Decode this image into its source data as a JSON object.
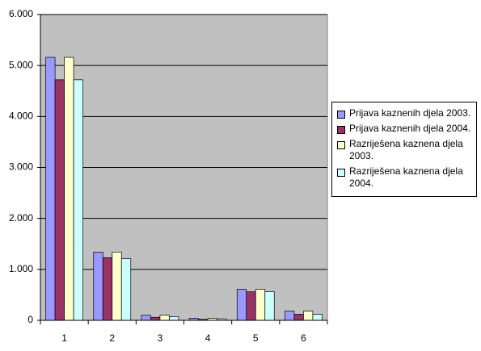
{
  "chart_data": {
    "type": "bar",
    "categories": [
      "1",
      "2",
      "3",
      "4",
      "5",
      "6"
    ],
    "series": [
      {
        "name": "Prijava kaznenih djela 2003.",
        "color": "#9999ff",
        "values": [
          5160,
          1340,
          100,
          40,
          610,
          180
        ]
      },
      {
        "name": "Prijava kaznenih djela 2004.",
        "color": "#993366",
        "values": [
          4720,
          1230,
          60,
          20,
          560,
          120
        ]
      },
      {
        "name": "Razriješena kaznena djela 2003.",
        "color": "#ffffcc",
        "values": [
          5160,
          1340,
          100,
          40,
          610,
          180
        ]
      },
      {
        "name": "Razriješena kaznena djela 2004.",
        "color": "#ccffff",
        "values": [
          4720,
          1210,
          70,
          30,
          560,
          120
        ]
      }
    ],
    "ylim": [
      0,
      6000
    ],
    "yticks": [
      {
        "value": 0,
        "label": "0"
      },
      {
        "value": 1000,
        "label": "1.000"
      },
      {
        "value": 2000,
        "label": "2.000"
      },
      {
        "value": 3000,
        "label": "3.000"
      },
      {
        "value": 4000,
        "label": "4.000"
      },
      {
        "value": 5000,
        "label": "5.000"
      },
      {
        "value": 6000,
        "label": "6.000"
      }
    ],
    "grid": true
  }
}
